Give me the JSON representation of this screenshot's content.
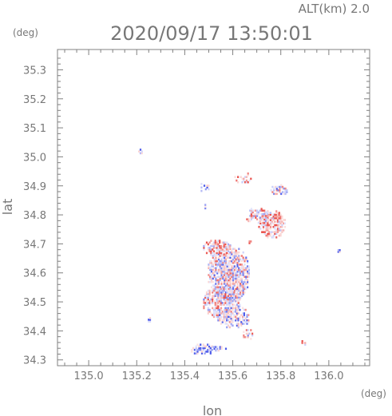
{
  "header": {
    "altitude_label": "ALT(km)  2.0",
    "timestamp": "2020/09/17 13:50:01"
  },
  "chart_data": {
    "type": "heatmap",
    "title": "2020/09/17 13:50:01",
    "xlabel": "lon",
    "ylabel": "lat",
    "xunit": "(deg)",
    "yunit": "(deg)",
    "xlim": [
      134.87,
      136.17
    ],
    "ylim": [
      34.28,
      35.37
    ],
    "xticks": [
      135.0,
      135.2,
      135.4,
      135.6,
      135.8,
      136.0
    ],
    "yticks": [
      34.3,
      34.4,
      34.5,
      34.6,
      34.7,
      34.8,
      34.9,
      35.0,
      35.1,
      35.2,
      35.3
    ],
    "xtick_labels": [
      "135.0",
      "135.2",
      "135.4",
      "135.6",
      "135.8",
      "136.0"
    ],
    "ytick_labels": [
      "34.3",
      "34.4",
      "34.5",
      "34.6",
      "34.7",
      "34.8",
      "34.9",
      "35.0",
      "35.1",
      "35.2",
      "35.3"
    ],
    "grid": false,
    "colors": {
      "positive": "#e8403a",
      "negative": "#3a4ae8",
      "axis": "#808080"
    },
    "clusters": [
      {
        "lon": 135.58,
        "lat": 34.6,
        "r_lon": 0.09,
        "r_lat": 0.1,
        "density": 0.85,
        "bias": 0.0
      },
      {
        "lon": 135.55,
        "lat": 34.5,
        "r_lon": 0.08,
        "r_lat": 0.06,
        "density": 0.75,
        "bias": 0.1
      },
      {
        "lon": 135.6,
        "lat": 34.45,
        "r_lon": 0.07,
        "r_lat": 0.04,
        "density": 0.6,
        "bias": -0.2
      },
      {
        "lon": 135.53,
        "lat": 34.69,
        "r_lon": 0.06,
        "r_lat": 0.03,
        "density": 0.7,
        "bias": 0.2
      },
      {
        "lon": 135.76,
        "lat": 34.77,
        "r_lon": 0.06,
        "r_lat": 0.05,
        "density": 0.8,
        "bias": 0.4
      },
      {
        "lon": 135.7,
        "lat": 34.8,
        "r_lon": 0.05,
        "r_lat": 0.03,
        "density": 0.6,
        "bias": 0.2
      },
      {
        "lon": 135.79,
        "lat": 34.89,
        "r_lon": 0.04,
        "r_lat": 0.02,
        "density": 0.6,
        "bias": -0.1
      },
      {
        "lon": 135.64,
        "lat": 34.93,
        "r_lon": 0.04,
        "r_lat": 0.02,
        "density": 0.4,
        "bias": 0.5
      },
      {
        "lon": 135.48,
        "lat": 34.9,
        "r_lon": 0.02,
        "r_lat": 0.02,
        "density": 0.4,
        "bias": -0.4
      },
      {
        "lon": 135.47,
        "lat": 34.34,
        "r_lon": 0.05,
        "r_lat": 0.02,
        "density": 0.7,
        "bias": -0.6
      },
      {
        "lon": 135.53,
        "lat": 34.34,
        "r_lon": 0.04,
        "r_lat": 0.01,
        "density": 0.6,
        "bias": -0.7
      },
      {
        "lon": 135.25,
        "lat": 34.44,
        "r_lon": 0.01,
        "r_lat": 0.01,
        "density": 0.6,
        "bias": -0.6
      },
      {
        "lon": 135.21,
        "lat": 35.02,
        "r_lon": 0.01,
        "r_lat": 0.01,
        "density": 0.6,
        "bias": -0.6
      },
      {
        "lon": 136.04,
        "lat": 34.68,
        "r_lon": 0.01,
        "r_lat": 0.01,
        "density": 0.6,
        "bias": -0.6
      },
      {
        "lon": 135.89,
        "lat": 34.36,
        "r_lon": 0.01,
        "r_lat": 0.01,
        "density": 0.6,
        "bias": 0.5
      },
      {
        "lon": 135.66,
        "lat": 34.39,
        "r_lon": 0.03,
        "r_lat": 0.02,
        "density": 0.4,
        "bias": 0.0
      },
      {
        "lon": 135.48,
        "lat": 34.82,
        "r_lon": 0.01,
        "r_lat": 0.03,
        "density": 0.3,
        "bias": -0.3
      },
      {
        "lon": 135.67,
        "lat": 34.71,
        "r_lon": 0.01,
        "r_lat": 0.01,
        "density": 0.5,
        "bias": 0.5
      }
    ]
  }
}
